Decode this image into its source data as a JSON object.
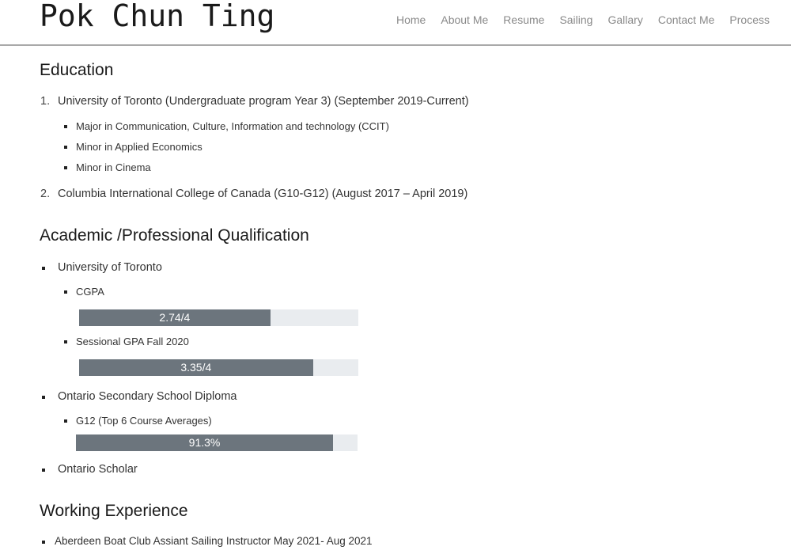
{
  "header": {
    "site_title": "Pok Chun Ting",
    "nav": [
      "Home",
      "About Me",
      "Resume",
      "Sailing",
      "Gallary",
      "Contact Me",
      "Process"
    ]
  },
  "education": {
    "heading": "Education",
    "items": [
      {
        "number": "1.",
        "label": "University of Toronto (Undergraduate program Year 3) (September 2019-Current)",
        "sub": [
          "Major in Communication, Culture, Information and technology (CCIT)",
          "Minor in Applied Economics",
          "Minor in Cinema"
        ]
      },
      {
        "number": "2.",
        "label": "Columbia International College of Canada (G10-G12) (August 2017 – April 2019)"
      }
    ]
  },
  "qualification": {
    "heading": "Academic /Professional Qualification",
    "items": [
      {
        "label": "University of Toronto",
        "sub": [
          {
            "label": "CGPA",
            "bar_text": "2.74/4",
            "fraction": 0.685
          },
          {
            "label": "Sessional GPA Fall 2020",
            "bar_text": "3.35/4",
            "fraction": 0.8375
          }
        ]
      },
      {
        "label": "Ontario Secondary School Diploma",
        "sub": [
          {
            "label": "G12 (Top 6 Course Averages)",
            "bar_text": "91.3%",
            "fraction": 0.913
          }
        ]
      },
      {
        "label": "Ontario Scholar"
      }
    ]
  },
  "work": {
    "heading": "Working Experience",
    "items": [
      "Aberdeen Boat Club Assiant Sailing Instructor May 2021- Aug 2021"
    ]
  },
  "colors": {
    "bar_fill": "#6c757d",
    "bar_track": "#e9ecef",
    "nav_text": "#8a8a8a"
  }
}
